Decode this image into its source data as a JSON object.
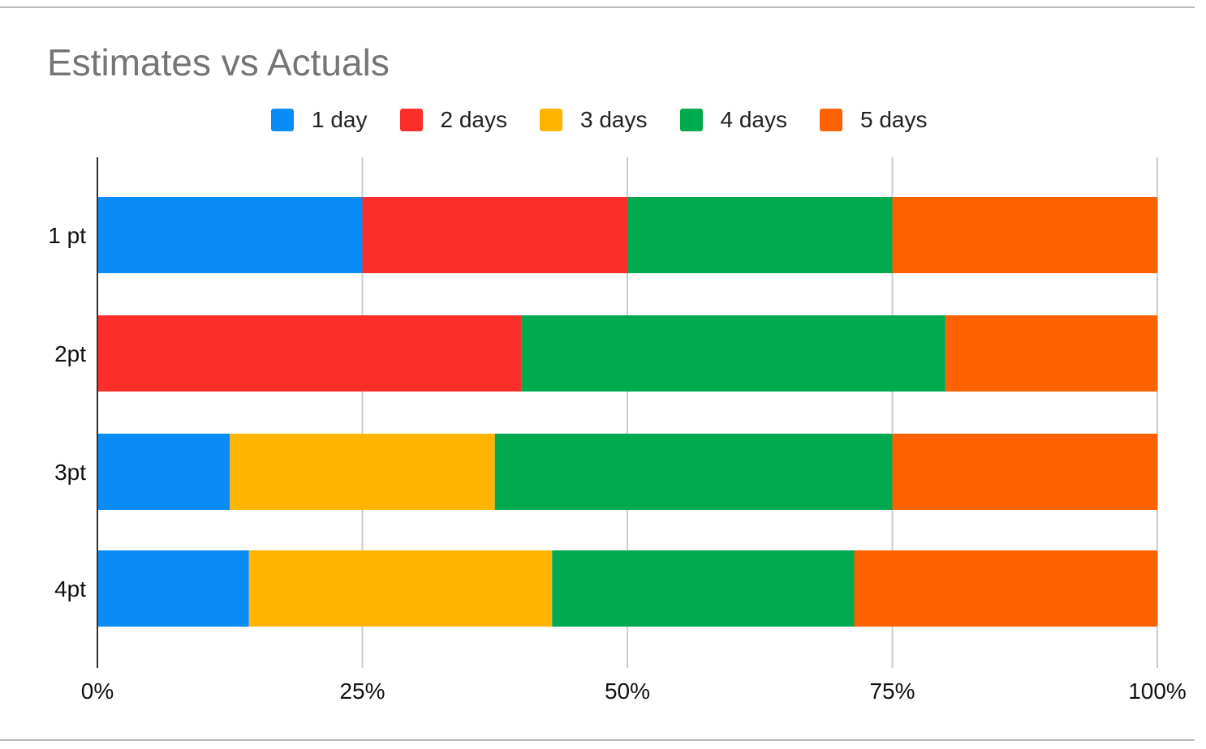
{
  "chart_data": {
    "type": "bar",
    "orientation": "horizontal",
    "stacked": "percent",
    "title": "Estimates vs Actuals",
    "xlabel": "",
    "ylabel": "",
    "categories": [
      "1 pt",
      "2pt",
      "3pt",
      "4pt"
    ],
    "x_ticks": [
      "0%",
      "25%",
      "50%",
      "75%",
      "100%"
    ],
    "xlim": [
      0,
      100
    ],
    "grid": true,
    "legend_position": "top",
    "series": [
      {
        "name": "1 day",
        "color": "#0a8cf7",
        "values": [
          25,
          0,
          12.5,
          14.3
        ]
      },
      {
        "name": "2 days",
        "color": "#fd2d2a",
        "values": [
          25,
          40,
          0,
          0
        ]
      },
      {
        "name": "3 days",
        "color": "#ffb400",
        "values": [
          0,
          0,
          25,
          28.6
        ]
      },
      {
        "name": "4 days",
        "color": "#01a94f",
        "values": [
          25,
          40,
          37.5,
          28.5
        ]
      },
      {
        "name": "5 days",
        "color": "#fe6100",
        "values": [
          25,
          20,
          25,
          28.6
        ]
      }
    ]
  }
}
